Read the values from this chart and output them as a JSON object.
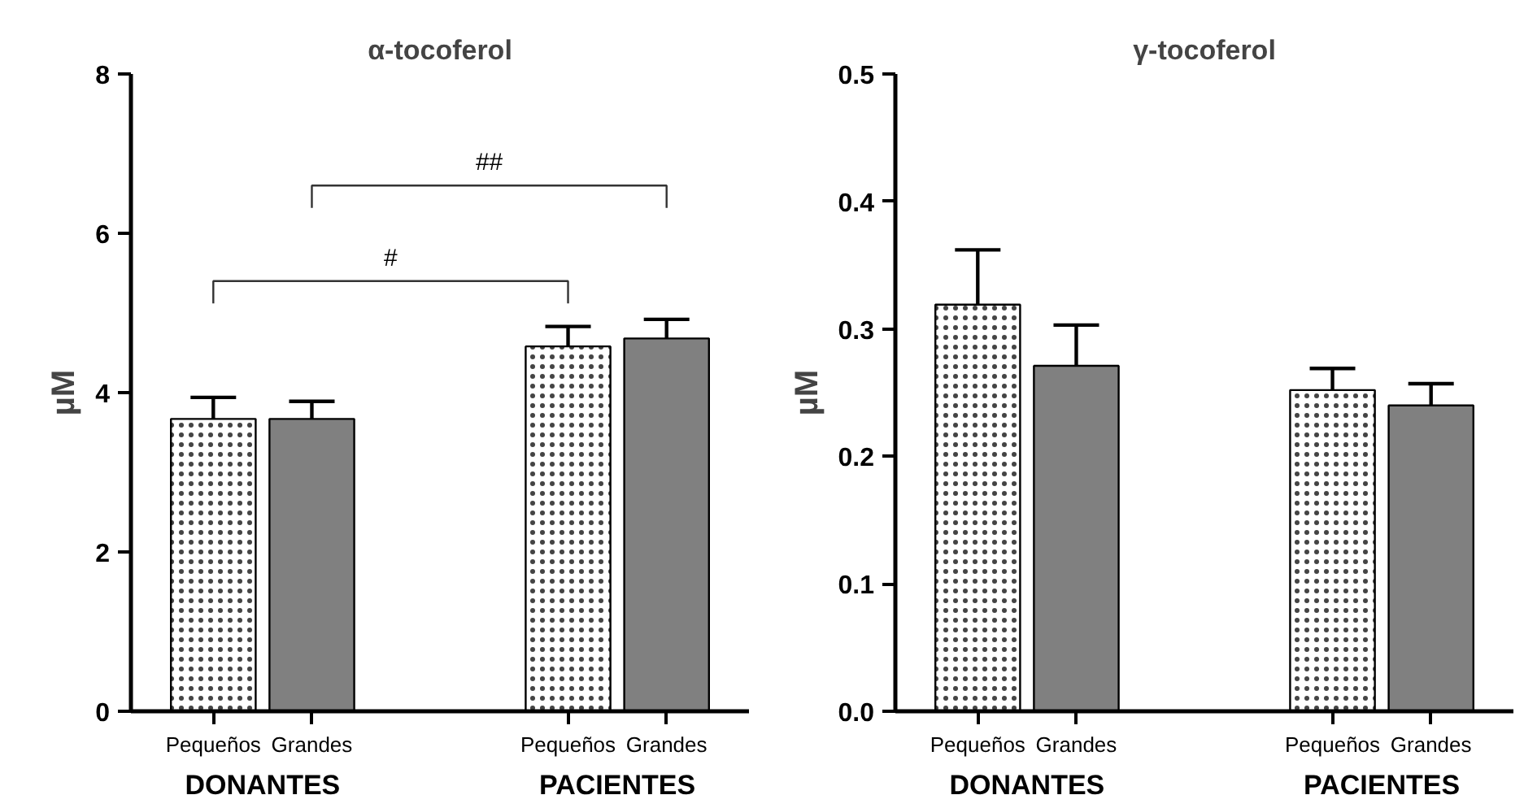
{
  "chart_data": [
    {
      "type": "bar",
      "title": "α-tocoferol",
      "ylabel": "µM",
      "categories": [
        "Pequeños",
        "Grandes",
        "Pequeños",
        "Grandes"
      ],
      "values": [
        3.67,
        3.67,
        4.58,
        4.68
      ],
      "errors": [
        [
          3.67,
          3.94
        ],
        [
          3.67,
          3.89
        ],
        [
          4.58,
          4.83
        ],
        [
          4.68,
          4.92
        ]
      ],
      "colors": [
        "#ffffff",
        "#808080",
        "#ffffff",
        "#808080"
      ],
      "ylim": [
        0,
        8
      ],
      "yticks": [
        0,
        2,
        4,
        6,
        8
      ],
      "grid": false,
      "annotations": [
        "DONANTES",
        "PACIENTES",
        "#",
        "##"
      ]
    },
    {
      "type": "bar",
      "title": "γ-tocoferol",
      "ylabel": "µM",
      "categories": [
        "Pequeños",
        "Grandes",
        "Pequeños",
        "Grandes"
      ],
      "values": [
        0.319,
        0.271,
        0.252,
        0.24
      ],
      "errors": [
        [
          0.319,
          0.362
        ],
        [
          0.271,
          0.303
        ],
        [
          0.252,
          0.269
        ],
        [
          0.24,
          0.257
        ]
      ],
      "colors": [
        "#ffffff",
        "#808080",
        "#ffffff",
        "#808080"
      ],
      "ylim": [
        0,
        0.5
      ],
      "yticks": [
        "0.0",
        0.1,
        0.2,
        0.3,
        0.4,
        0.5
      ],
      "grid": false,
      "annotations": [
        "DONANTES",
        "PACIENTES"
      ]
    }
  ]
}
